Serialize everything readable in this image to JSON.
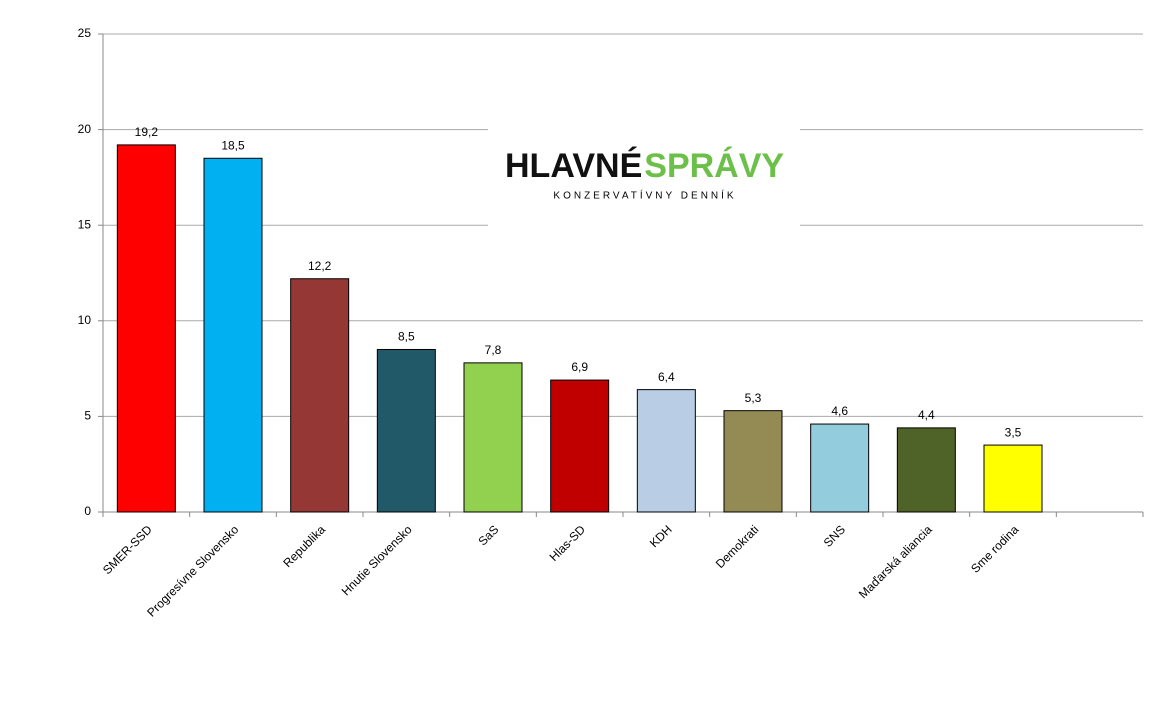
{
  "chart_data": {
    "type": "bar",
    "categories": [
      "SMER-SSD",
      "Progresívne Slovensko",
      "Republika",
      "Hnutie Slovensko",
      "SaS",
      "Hlas-SD",
      "KDH",
      "Demokrati",
      "SNS",
      "Maďarská aliancia",
      "Sme rodina",
      null
    ],
    "values": [
      19.2,
      18.5,
      12.2,
      8.5,
      7.8,
      6.9,
      6.4,
      5.3,
      4.6,
      4.4,
      3.5,
      null
    ],
    "value_labels": [
      "19,2",
      "18,5",
      "12,2",
      "8,5",
      "7,8",
      "6,9",
      "6,4",
      "5,3",
      "4,6",
      "4,4",
      "3,5",
      null
    ],
    "colors": [
      "#ff0000",
      "#00b0f0",
      "#953735",
      "#215968",
      "#92d050",
      "#c00000",
      "#b9cde5",
      "#948a54",
      "#93cddd",
      "#4f6228",
      "#ffff00",
      null
    ],
    "ylim": [
      0,
      25
    ],
    "yticks": [
      0,
      5,
      10,
      15,
      20,
      25
    ],
    "grid": true,
    "logo_text": [
      "HLAVNÉ",
      "SPRÁVY"
    ],
    "logo_tagline": "KONZERVATÍVNY DENNÍK"
  }
}
